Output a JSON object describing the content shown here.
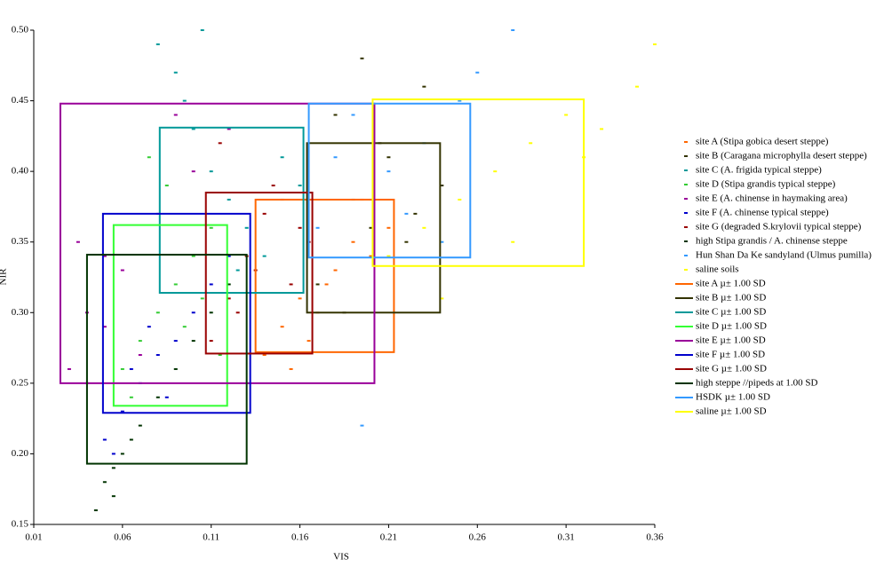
{
  "chart_data": {
    "type": "scatter",
    "x_label": "VIS",
    "y_label": "NIR",
    "xlim": [
      0.01,
      0.36
    ],
    "xticks": [
      0.01,
      0.06,
      0.11,
      0.16,
      0.21,
      0.26,
      0.31,
      0.36
    ],
    "ylim": [
      0.15,
      0.5
    ],
    "yticks": [
      0.15,
      {
        "value": 0.2,
        "label": "0.20"
      },
      0.25,
      {
        "value": 0.3,
        "label": "0.30"
      },
      0.35,
      {
        "value": 0.4,
        "label": "0.40"
      },
      0.45,
      {
        "value": 0.5,
        "label": "0.50"
      }
    ],
    "grid": false,
    "series": [
      {
        "name": "site A (Stipa gobica desert steppe)",
        "color": "#ff6600",
        "x": [
          0.14,
          0.15,
          0.16,
          0.17,
          0.18,
          0.19,
          0.2,
          0.21,
          0.155,
          0.175,
          0.195,
          0.165
        ],
        "values": [
          0.27,
          0.29,
          0.31,
          0.3,
          0.33,
          0.35,
          0.34,
          0.36,
          0.26,
          0.32,
          0.38,
          0.28
        ]
      },
      {
        "name": "site B (Caragana microphylla desert steppe)",
        "color": "#333300",
        "x": [
          0.17,
          0.18,
          0.19,
          0.2,
          0.21,
          0.22,
          0.23,
          0.24,
          0.185,
          0.205,
          0.225,
          0.195
        ],
        "values": [
          0.32,
          0.44,
          0.38,
          0.36,
          0.41,
          0.35,
          0.46,
          0.39,
          0.3,
          0.42,
          0.37,
          0.48
        ]
      },
      {
        "name": "site C (A. frigida typical steppe)",
        "color": "#009999",
        "x": [
          0.08,
          0.09,
          0.1,
          0.11,
          0.12,
          0.13,
          0.14,
          0.15,
          0.095,
          0.105,
          0.125,
          0.16
        ],
        "values": [
          0.49,
          0.47,
          0.43,
          0.4,
          0.38,
          0.36,
          0.34,
          0.41,
          0.45,
          0.5,
          0.33,
          0.39
        ]
      },
      {
        "name": "site D (Stipa grandis typical steppe)",
        "color": "#33cc33",
        "x": [
          0.06,
          0.07,
          0.08,
          0.09,
          0.1,
          0.11,
          0.065,
          0.085,
          0.095,
          0.105,
          0.075,
          0.115
        ],
        "values": [
          0.26,
          0.28,
          0.3,
          0.32,
          0.34,
          0.36,
          0.24,
          0.39,
          0.29,
          0.31,
          0.41,
          0.27
        ]
      },
      {
        "name": "site E (A. chinense in haymaking area)",
        "color": "#990099",
        "x": [
          0.03,
          0.04,
          0.05,
          0.06,
          0.08,
          0.1,
          0.12,
          0.04,
          0.05,
          0.07,
          0.09,
          0.035
        ],
        "values": [
          0.26,
          0.3,
          0.34,
          0.33,
          0.37,
          0.4,
          0.43,
          0.25,
          0.29,
          0.27,
          0.44,
          0.35
        ]
      },
      {
        "name": "site F (A. chinense typical steppe)",
        "color": "#0000cc",
        "x": [
          0.05,
          0.06,
          0.07,
          0.08,
          0.09,
          0.1,
          0.11,
          0.065,
          0.075,
          0.085,
          0.055,
          0.12
        ],
        "values": [
          0.21,
          0.23,
          0.25,
          0.27,
          0.28,
          0.3,
          0.32,
          0.26,
          0.29,
          0.24,
          0.2,
          0.34
        ]
      },
      {
        "name": "site G (degraded S.krylovii typical steppe)",
        "color": "#990000",
        "x": [
          0.11,
          0.12,
          0.13,
          0.14,
          0.15,
          0.16,
          0.125,
          0.135,
          0.145,
          0.155,
          0.165,
          0.115
        ],
        "values": [
          0.28,
          0.31,
          0.34,
          0.37,
          0.38,
          0.36,
          0.3,
          0.33,
          0.39,
          0.32,
          0.35,
          0.42
        ]
      },
      {
        "name": "high Stipa grandis / A. chinense steppe",
        "color": "#003300",
        "x": [
          0.045,
          0.05,
          0.055,
          0.06,
          0.07,
          0.08,
          0.09,
          0.1,
          0.11,
          0.12,
          0.055,
          0.065
        ],
        "values": [
          0.16,
          0.18,
          0.19,
          0.2,
          0.22,
          0.24,
          0.26,
          0.28,
          0.3,
          0.32,
          0.17,
          0.21
        ]
      },
      {
        "name": "Hun Shan Da Ke sandyland (Ulmus pumilla)",
        "color": "#3399ff",
        "x": [
          0.17,
          0.18,
          0.19,
          0.2,
          0.21,
          0.22,
          0.23,
          0.24,
          0.25,
          0.26,
          0.28,
          0.195
        ],
        "values": [
          0.36,
          0.41,
          0.44,
          0.38,
          0.4,
          0.37,
          0.42,
          0.35,
          0.45,
          0.47,
          0.5,
          0.22
        ]
      },
      {
        "name": "saline soils",
        "color": "#ffff00",
        "x": [
          0.21,
          0.23,
          0.25,
          0.27,
          0.29,
          0.31,
          0.33,
          0.35,
          0.36,
          0.24,
          0.28,
          0.32
        ],
        "values": [
          0.34,
          0.36,
          0.38,
          0.4,
          0.42,
          0.44,
          0.43,
          0.46,
          0.49,
          0.31,
          0.35,
          0.41
        ]
      }
    ],
    "boxes": [
      {
        "name": "site A µ± 1.00 SD",
        "color": "#ff6600",
        "x": [
          0.135,
          0.213
        ],
        "y": [
          0.272,
          0.38
        ]
      },
      {
        "name": "site B µ± 1.00 SD",
        "color": "#333300",
        "x": [
          0.164,
          0.239
        ],
        "y": [
          0.3,
          0.42
        ]
      },
      {
        "name": "site C µ± 1.00 SD",
        "color": "#009999",
        "x": [
          0.081,
          0.162
        ],
        "y": [
          0.314,
          0.431
        ]
      },
      {
        "name": "site D µ± 1.00 SD",
        "color": "#33ff33",
        "x": [
          0.055,
          0.119
        ],
        "y": [
          0.234,
          0.362
        ]
      },
      {
        "name": "site E µ± 1.00 SD",
        "color": "#990099",
        "x": [
          0.025,
          0.202
        ],
        "y": [
          0.25,
          0.448
        ]
      },
      {
        "name": "site F µ± 1.00 SD",
        "color": "#0000cc",
        "x": [
          0.049,
          0.132
        ],
        "y": [
          0.229,
          0.37
        ]
      },
      {
        "name": "site G µ± 1.00 SD",
        "color": "#990000",
        "x": [
          0.107,
          0.167
        ],
        "y": [
          0.271,
          0.385
        ]
      },
      {
        "name": "high  steppe //pipeds at 1.00 SD",
        "color": "#003300",
        "x": [
          0.04,
          0.13
        ],
        "y": [
          0.193,
          0.341
        ]
      },
      {
        "name": "HSDK µ± 1.00 SD",
        "color": "#3399ff",
        "x": [
          0.165,
          0.256
        ],
        "y": [
          0.339,
          0.448
        ]
      },
      {
        "name": "saline µ± 1.00 SD",
        "color": "#ffff00",
        "x": [
          0.201,
          0.32
        ],
        "y": [
          0.333,
          0.451
        ]
      }
    ]
  }
}
